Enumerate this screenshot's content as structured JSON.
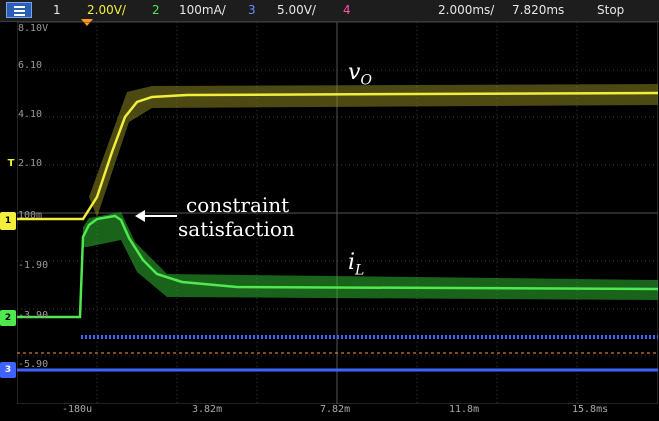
{
  "topbar": {
    "ch1_num": "1",
    "ch1_scale": "2.00V/",
    "ch2_num": "2",
    "ch2_scale": "100mA/",
    "ch3_num": "3",
    "ch3_scale": "5.00V/",
    "ch4_num": "4",
    "timebase": "2.000ms/",
    "delay": "7.820ms",
    "run_state": "Stop"
  },
  "y_ticks": [
    "8.10V",
    "6.10",
    "4.10",
    "2.10",
    "100m",
    "-1.90",
    "-3.90",
    "-5.90"
  ],
  "x_ticks": [
    "-180u",
    "3.82m",
    "7.82m",
    "11.8m",
    "15.8ms"
  ],
  "markers": {
    "ch1": "1",
    "ch2": "2",
    "ch3": "3",
    "trigger": "T"
  },
  "annotations": {
    "vo_main": "v",
    "vo_sub": "O",
    "il_main": "i",
    "il_sub": "L",
    "constraint_line1": "constraint",
    "constraint_line2": "satisfaction"
  },
  "colors": {
    "ch1": "#f2ee3c",
    "ch2": "#4fe84f",
    "ch3": "#3f63ff",
    "ch4": "#ff4fb0",
    "grid": "#3c3c3c"
  }
}
